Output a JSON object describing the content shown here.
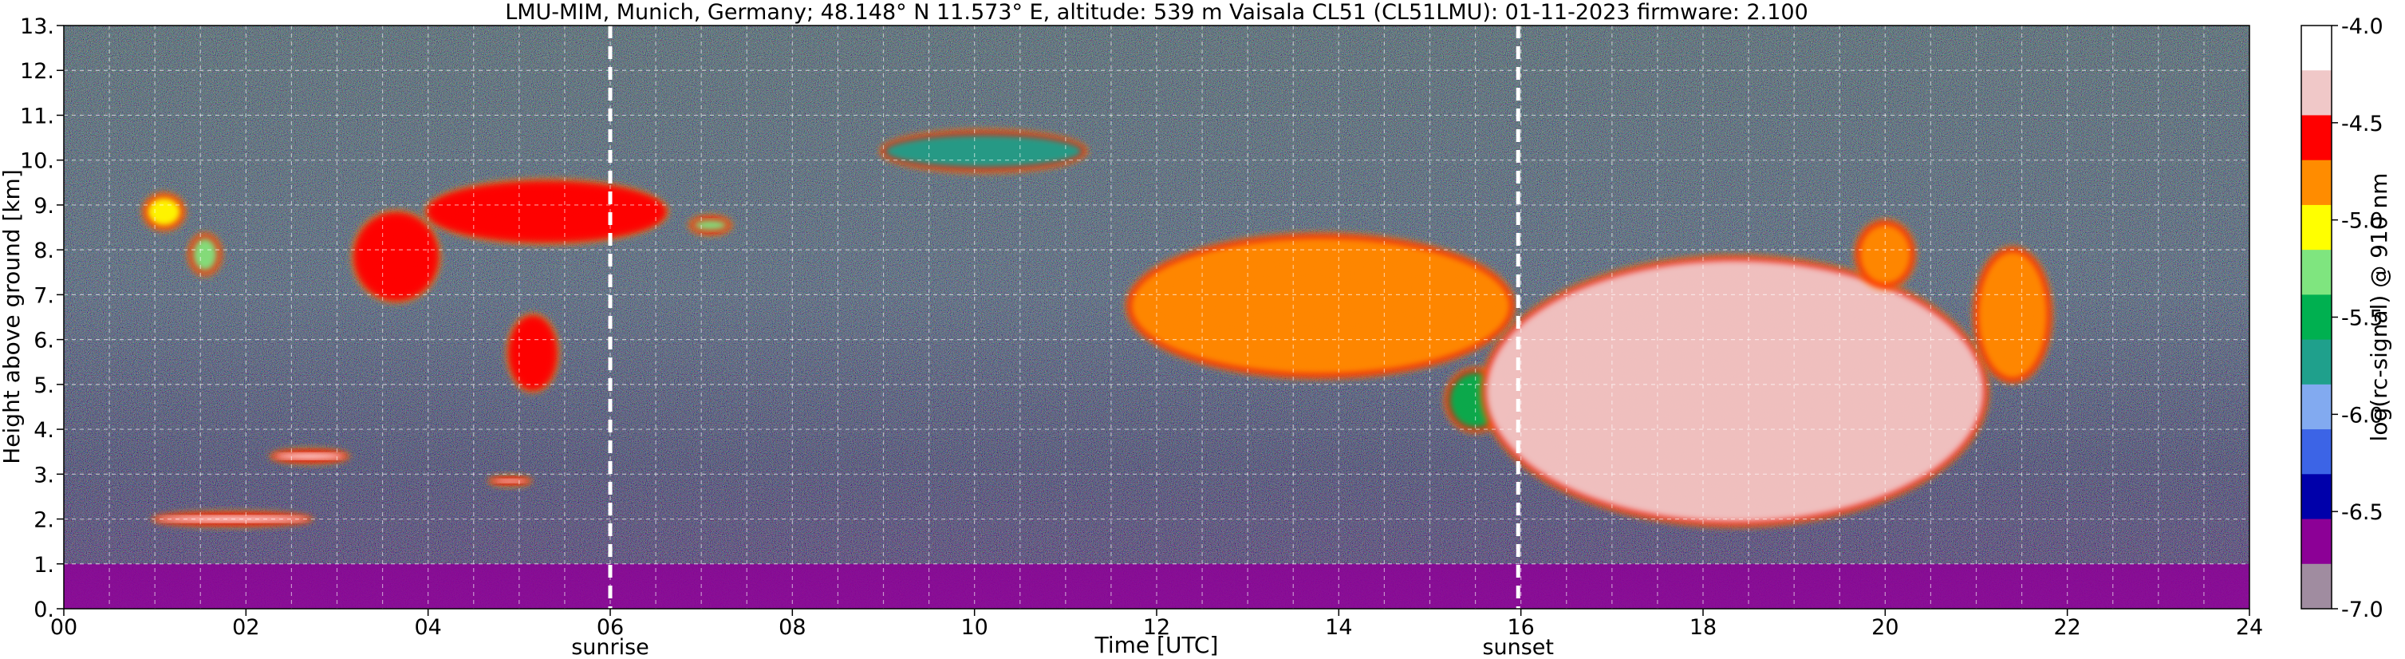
{
  "chart_data": {
    "type": "heatmap",
    "title": "LMU-MIM, Munich, Germany; 48.148° N 11.573° E, altitude: 539 m    Vaisala CL51 (CL51LMU): 01-11-2023    firmware: 2.100",
    "xlabel": "Time [UTC]",
    "ylabel": "Height above ground [km]",
    "xlim": [
      0,
      24
    ],
    "ylim": [
      0,
      13
    ],
    "x_ticks": [
      0,
      2,
      4,
      6,
      8,
      10,
      12,
      14,
      16,
      18,
      20,
      22,
      24
    ],
    "x_tick_labels": [
      "00",
      "02",
      "04",
      "06",
      "08",
      "10",
      "12",
      "14",
      "16",
      "18",
      "20",
      "22",
      "24"
    ],
    "y_ticks": [
      0,
      1,
      2,
      3,
      4,
      5,
      6,
      7,
      8,
      9,
      10,
      11,
      12,
      13
    ],
    "y_tick_labels": [
      "0.",
      "1.",
      "2.",
      "3.",
      "4.",
      "5.",
      "6.",
      "7.",
      "8.",
      "9.",
      "10.",
      "11.",
      "12.",
      "13."
    ],
    "grid": true,
    "colorbar": {
      "label": "log(rc-signal) @ 910 nm",
      "range": [
        -7.0,
        -4.0
      ],
      "ticks": [
        -4.0,
        -4.5,
        -5.0,
        -5.5,
        -6.0,
        -6.5,
        -7.0
      ],
      "tick_labels": [
        "-4.0",
        "-4.5",
        "-5.0",
        "-5.5",
        "-6.0",
        "-6.5",
        "-7.0"
      ],
      "colors": [
        "#ffffff",
        "#f0c8c8",
        "#ff0000",
        "#ff8c00",
        "#ffff00",
        "#7fe57f",
        "#00b050",
        "#1fa08c",
        "#82aaf0",
        "#3c64e6",
        "#0000aa",
        "#8c0096",
        "#a08ca0"
      ]
    },
    "events": [
      {
        "label": "sunrise",
        "x": 6.0
      },
      {
        "label": "sunset",
        "x": 15.97
      }
    ],
    "cloud_layers": [
      {
        "x": [
          0.9,
          1.3
        ],
        "y": [
          8.5,
          9.2
        ],
        "level": -5.0
      },
      {
        "x": [
          1.4,
          1.7
        ],
        "y": [
          7.5,
          8.3
        ],
        "level": -5.2
      },
      {
        "x": [
          3.2,
          4.1
        ],
        "y": [
          6.9,
          8.8
        ],
        "level": -4.5
      },
      {
        "x": [
          4.0,
          6.6
        ],
        "y": [
          8.2,
          9.5
        ],
        "level": -4.6
      },
      {
        "x": [
          4.9,
          5.4
        ],
        "y": [
          4.9,
          6.5
        ],
        "level": -4.5
      },
      {
        "x": [
          6.9,
          7.3
        ],
        "y": [
          8.4,
          8.7
        ],
        "level": -5.3
      },
      {
        "x": [
          9.0,
          11.2
        ],
        "y": [
          9.8,
          10.6
        ],
        "level": -5.8
      },
      {
        "x": [
          11.7,
          15.9
        ],
        "y": [
          5.2,
          8.3
        ],
        "level": -4.8
      },
      {
        "x": [
          15.2,
          15.8
        ],
        "y": [
          4.0,
          5.3
        ],
        "level": -5.6
      },
      {
        "x": [
          15.6,
          21.1
        ],
        "y": [
          1.9,
          7.8
        ],
        "level": -4.3
      },
      {
        "x": [
          19.7,
          20.3
        ],
        "y": [
          7.2,
          8.6
        ],
        "level": -4.7
      },
      {
        "x": [
          21.0,
          21.8
        ],
        "y": [
          5.1,
          8.0
        ],
        "level": -4.7
      },
      {
        "x": [
          1.0,
          2.7
        ],
        "y": [
          1.9,
          2.1
        ],
        "level": -4.0
      },
      {
        "x": [
          2.3,
          3.1
        ],
        "y": [
          3.3,
          3.5
        ],
        "level": -4.0
      },
      {
        "x": [
          4.7,
          5.1
        ],
        "y": [
          2.8,
          2.9
        ],
        "level": -4.0
      }
    ],
    "boundary_layer": {
      "x": [
        0,
        24
      ],
      "y": [
        0,
        1.0
      ],
      "level": -6.7
    }
  }
}
